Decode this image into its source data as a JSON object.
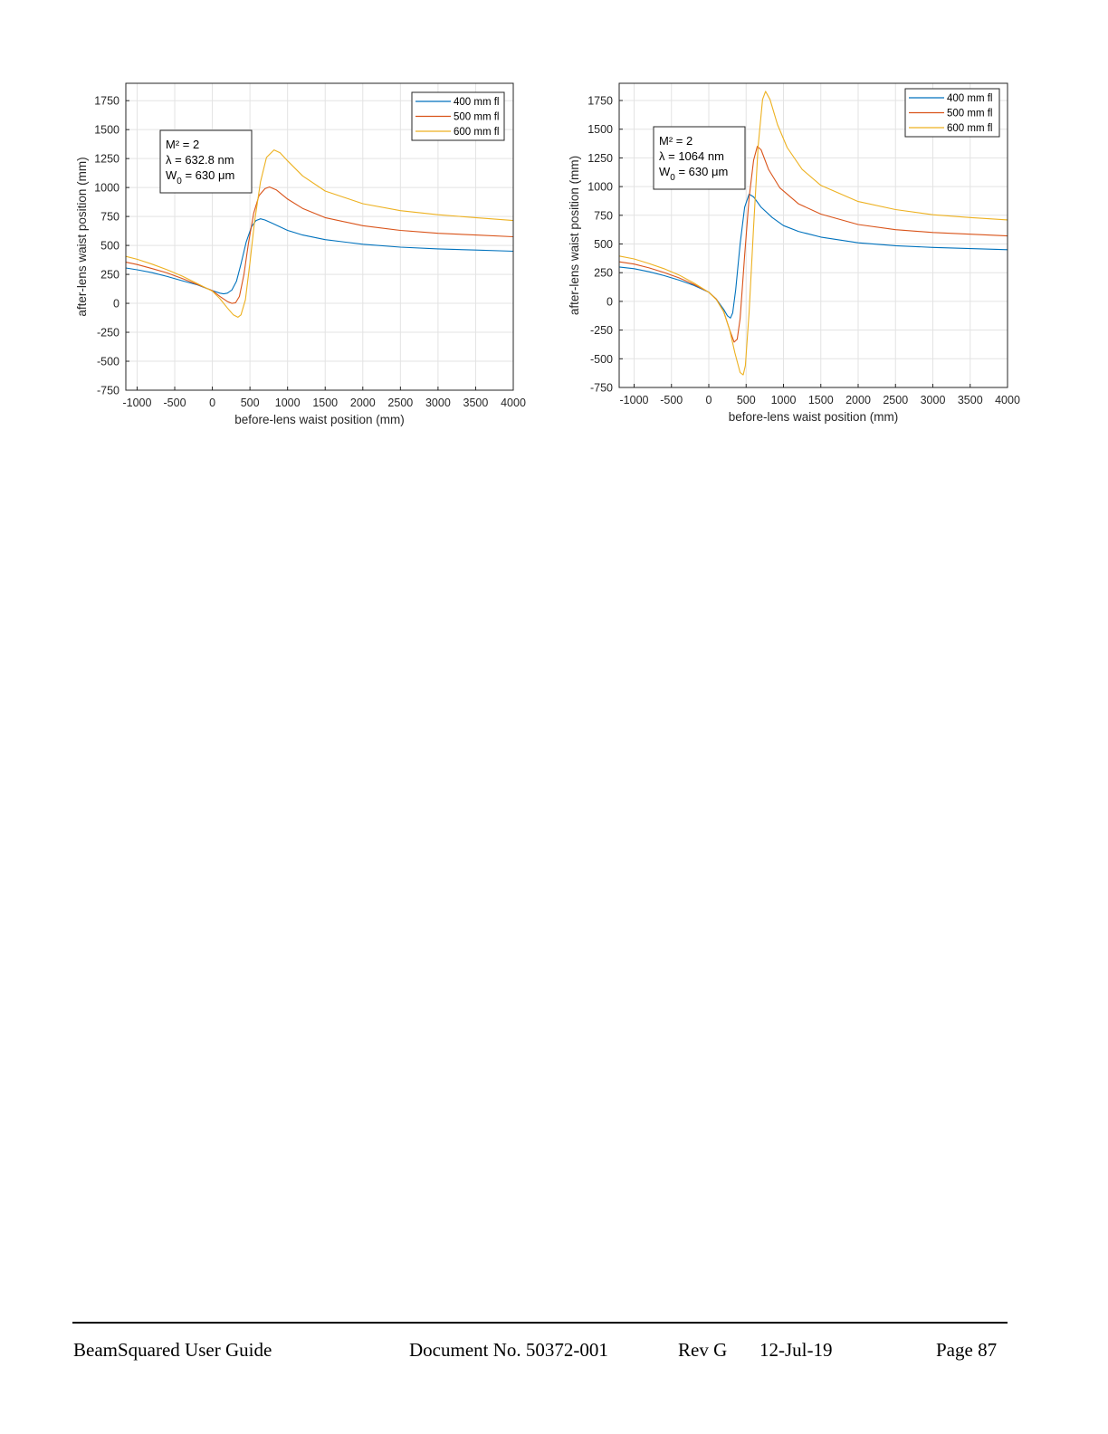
{
  "chart_data": [
    {
      "type": "line",
      "title": "",
      "xlabel": "before-lens waist position (mm)",
      "ylabel": "after-lens waist position (mm)",
      "xlim": [
        -1150,
        4000
      ],
      "ylim": [
        -750,
        1900
      ],
      "xticks": [
        -1000,
        -500,
        0,
        500,
        1000,
        1500,
        2000,
        2500,
        3000,
        3500,
        4000
      ],
      "yticks": [
        -750,
        -500,
        -250,
        0,
        250,
        500,
        750,
        1000,
        1250,
        1500,
        1750
      ],
      "grid": true,
      "legend_position": "top-right",
      "annotation": {
        "m2": "M² = 2",
        "lambda": "λ = 632.8 nm",
        "w0_prefix": "W",
        "w0_sub": "0",
        "w0_suffix": " = 630 μm"
      },
      "series": [
        {
          "name": "400 mm fl",
          "color": "#0072BD",
          "points": [
            [
              -1150,
              305
            ],
            [
              -1000,
              290
            ],
            [
              -800,
              265
            ],
            [
              -600,
              232
            ],
            [
              -400,
              195
            ],
            [
              -200,
              160
            ],
            [
              0,
              110
            ],
            [
              100,
              88
            ],
            [
              150,
              82
            ],
            [
              200,
              88
            ],
            [
              260,
              115
            ],
            [
              320,
              190
            ],
            [
              380,
              340
            ],
            [
              450,
              530
            ],
            [
              520,
              660
            ],
            [
              580,
              715
            ],
            [
              640,
              730
            ],
            [
              700,
              720
            ],
            [
              800,
              690
            ],
            [
              1000,
              630
            ],
            [
              1200,
              590
            ],
            [
              1500,
              550
            ],
            [
              2000,
              510
            ],
            [
              2500,
              485
            ],
            [
              3000,
              470
            ],
            [
              3500,
              460
            ],
            [
              4000,
              450
            ]
          ]
        },
        {
          "name": "500 mm fl",
          "color": "#D95319",
          "points": [
            [
              -1150,
              355
            ],
            [
              -1000,
              335
            ],
            [
              -800,
              300
            ],
            [
              -600,
              262
            ],
            [
              -400,
              215
            ],
            [
              -200,
              163
            ],
            [
              0,
              110
            ],
            [
              100,
              60
            ],
            [
              200,
              15
            ],
            [
              260,
              0
            ],
            [
              310,
              5
            ],
            [
              360,
              60
            ],
            [
              420,
              250
            ],
            [
              480,
              520
            ],
            [
              550,
              780
            ],
            [
              620,
              930
            ],
            [
              700,
              990
            ],
            [
              760,
              1005
            ],
            [
              850,
              980
            ],
            [
              1000,
              900
            ],
            [
              1200,
              820
            ],
            [
              1500,
              740
            ],
            [
              2000,
              670
            ],
            [
              2500,
              630
            ],
            [
              3000,
              605
            ],
            [
              3500,
              590
            ],
            [
              4000,
              575
            ]
          ]
        },
        {
          "name": "600 mm fl",
          "color": "#EDB120",
          "points": [
            [
              -1150,
              405
            ],
            [
              -1000,
              380
            ],
            [
              -800,
              338
            ],
            [
              -600,
              290
            ],
            [
              -400,
              235
            ],
            [
              -200,
              170
            ],
            [
              0,
              105
            ],
            [
              100,
              40
            ],
            [
              200,
              -40
            ],
            [
              280,
              -100
            ],
            [
              340,
              -120
            ],
            [
              380,
              -100
            ],
            [
              440,
              30
            ],
            [
              500,
              350
            ],
            [
              560,
              700
            ],
            [
              640,
              1050
            ],
            [
              720,
              1260
            ],
            [
              820,
              1325
            ],
            [
              900,
              1300
            ],
            [
              1000,
              1230
            ],
            [
              1200,
              1100
            ],
            [
              1500,
              970
            ],
            [
              2000,
              860
            ],
            [
              2500,
              800
            ],
            [
              3000,
              765
            ],
            [
              3500,
              740
            ],
            [
              4000,
              715
            ]
          ]
        }
      ]
    },
    {
      "type": "line",
      "title": "",
      "xlabel": "before-lens waist position (mm)",
      "ylabel": "after-lens waist position (mm)",
      "xlim": [
        -1200,
        4000
      ],
      "ylim": [
        -750,
        1900
      ],
      "xticks": [
        -1000,
        -500,
        0,
        500,
        1000,
        1500,
        2000,
        2500,
        3000,
        3500,
        4000
      ],
      "yticks": [
        -750,
        -500,
        -250,
        0,
        250,
        500,
        750,
        1000,
        1250,
        1500,
        1750
      ],
      "grid": true,
      "legend_position": "top-right",
      "annotation": {
        "m2": "M² = 2",
        "lambda": "λ = 1064 nm",
        "w0_prefix": "W",
        "w0_sub": "0",
        "w0_suffix": " = 630 μm"
      },
      "series": [
        {
          "name": "400 mm fl",
          "color": "#0072BD",
          "points": [
            [
              -1200,
              300
            ],
            [
              -1000,
              285
            ],
            [
              -800,
              258
            ],
            [
              -600,
              225
            ],
            [
              -400,
              185
            ],
            [
              -200,
              140
            ],
            [
              0,
              80
            ],
            [
              100,
              20
            ],
            [
              200,
              -70
            ],
            [
              250,
              -125
            ],
            [
              290,
              -145
            ],
            [
              320,
              -100
            ],
            [
              360,
              100
            ],
            [
              420,
              500
            ],
            [
              480,
              820
            ],
            [
              540,
              935
            ],
            [
              600,
              910
            ],
            [
              700,
              820
            ],
            [
              850,
              730
            ],
            [
              1000,
              660
            ],
            [
              1200,
              610
            ],
            [
              1500,
              560
            ],
            [
              2000,
              510
            ],
            [
              2500,
              485
            ],
            [
              3000,
              470
            ],
            [
              3500,
              460
            ],
            [
              4000,
              450
            ]
          ]
        },
        {
          "name": "500 mm fl",
          "color": "#D95319",
          "points": [
            [
              -1200,
              345
            ],
            [
              -1000,
              325
            ],
            [
              -800,
              292
            ],
            [
              -600,
              252
            ],
            [
              -400,
              205
            ],
            [
              -200,
              148
            ],
            [
              0,
              80
            ],
            [
              100,
              20
            ],
            [
              200,
              -90
            ],
            [
              280,
              -250
            ],
            [
              340,
              -355
            ],
            [
              380,
              -330
            ],
            [
              420,
              -150
            ],
            [
              480,
              400
            ],
            [
              540,
              900
            ],
            [
              600,
              1230
            ],
            [
              650,
              1350
            ],
            [
              700,
              1320
            ],
            [
              800,
              1150
            ],
            [
              950,
              990
            ],
            [
              1200,
              850
            ],
            [
              1500,
              760
            ],
            [
              2000,
              670
            ],
            [
              2500,
              625
            ],
            [
              3000,
              600
            ],
            [
              3500,
              585
            ],
            [
              4000,
              570
            ]
          ]
        },
        {
          "name": "600 mm fl",
          "color": "#EDB120",
          "points": [
            [
              -1200,
              395
            ],
            [
              -1000,
              370
            ],
            [
              -800,
              330
            ],
            [
              -600,
              285
            ],
            [
              -400,
              230
            ],
            [
              -200,
              160
            ],
            [
              0,
              80
            ],
            [
              100,
              15
            ],
            [
              200,
              -90
            ],
            [
              280,
              -250
            ],
            [
              350,
              -450
            ],
            [
              420,
              -620
            ],
            [
              460,
              -640
            ],
            [
              490,
              -560
            ],
            [
              540,
              -100
            ],
            [
              600,
              650
            ],
            [
              660,
              1350
            ],
            [
              720,
              1760
            ],
            [
              760,
              1830
            ],
            [
              820,
              1760
            ],
            [
              920,
              1540
            ],
            [
              1050,
              1340
            ],
            [
              1250,
              1150
            ],
            [
              1500,
              1010
            ],
            [
              2000,
              870
            ],
            [
              2500,
              800
            ],
            [
              3000,
              755
            ],
            [
              3500,
              730
            ],
            [
              4000,
              710
            ]
          ]
        }
      ]
    }
  ],
  "footer": {
    "guide": "BeamSquared User Guide",
    "docno": "Document No. 50372-001",
    "rev": "Rev G",
    "date": "12-Jul-19",
    "page": "Page 87"
  }
}
